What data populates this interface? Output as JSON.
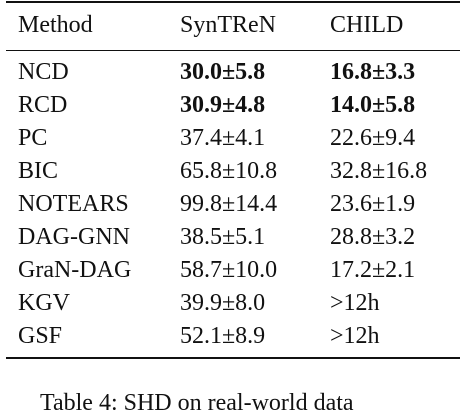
{
  "table": {
    "headers": [
      "Method",
      "SynTReN",
      "CHILD"
    ],
    "rows": [
      {
        "method": "NCD",
        "syntren": "30.0±5.8",
        "child": "16.8±3.3",
        "syntren_bold": true,
        "child_bold": true
      },
      {
        "method": "RCD",
        "syntren": "30.9±4.8",
        "child": "14.0±5.8",
        "syntren_bold": true,
        "child_bold": true
      },
      {
        "method": "PC",
        "syntren": "37.4±4.1",
        "child": "22.6±9.4",
        "syntren_bold": false,
        "child_bold": false
      },
      {
        "method": "BIC",
        "syntren": "65.8±10.8",
        "child": "32.8±16.8",
        "syntren_bold": false,
        "child_bold": false
      },
      {
        "method": "NOTEARS",
        "syntren": "99.8±14.4",
        "child": "23.6±1.9",
        "syntren_bold": false,
        "child_bold": false
      },
      {
        "method": "DAG-GNN",
        "syntren": "38.5±5.1",
        "child": "28.8±3.2",
        "syntren_bold": false,
        "child_bold": false
      },
      {
        "method": "GraN-DAG",
        "syntren": "58.7±10.0",
        "child": "17.2±2.1",
        "syntren_bold": false,
        "child_bold": false
      },
      {
        "method": "KGV",
        "syntren": "39.9±8.0",
        "child": ">12h",
        "syntren_bold": false,
        "child_bold": false
      },
      {
        "method": "GSF",
        "syntren": "52.1±8.9",
        "child": ">12h",
        "syntren_bold": false,
        "child_bold": false
      }
    ]
  },
  "caption": "Table 4: SHD on real-world data"
}
